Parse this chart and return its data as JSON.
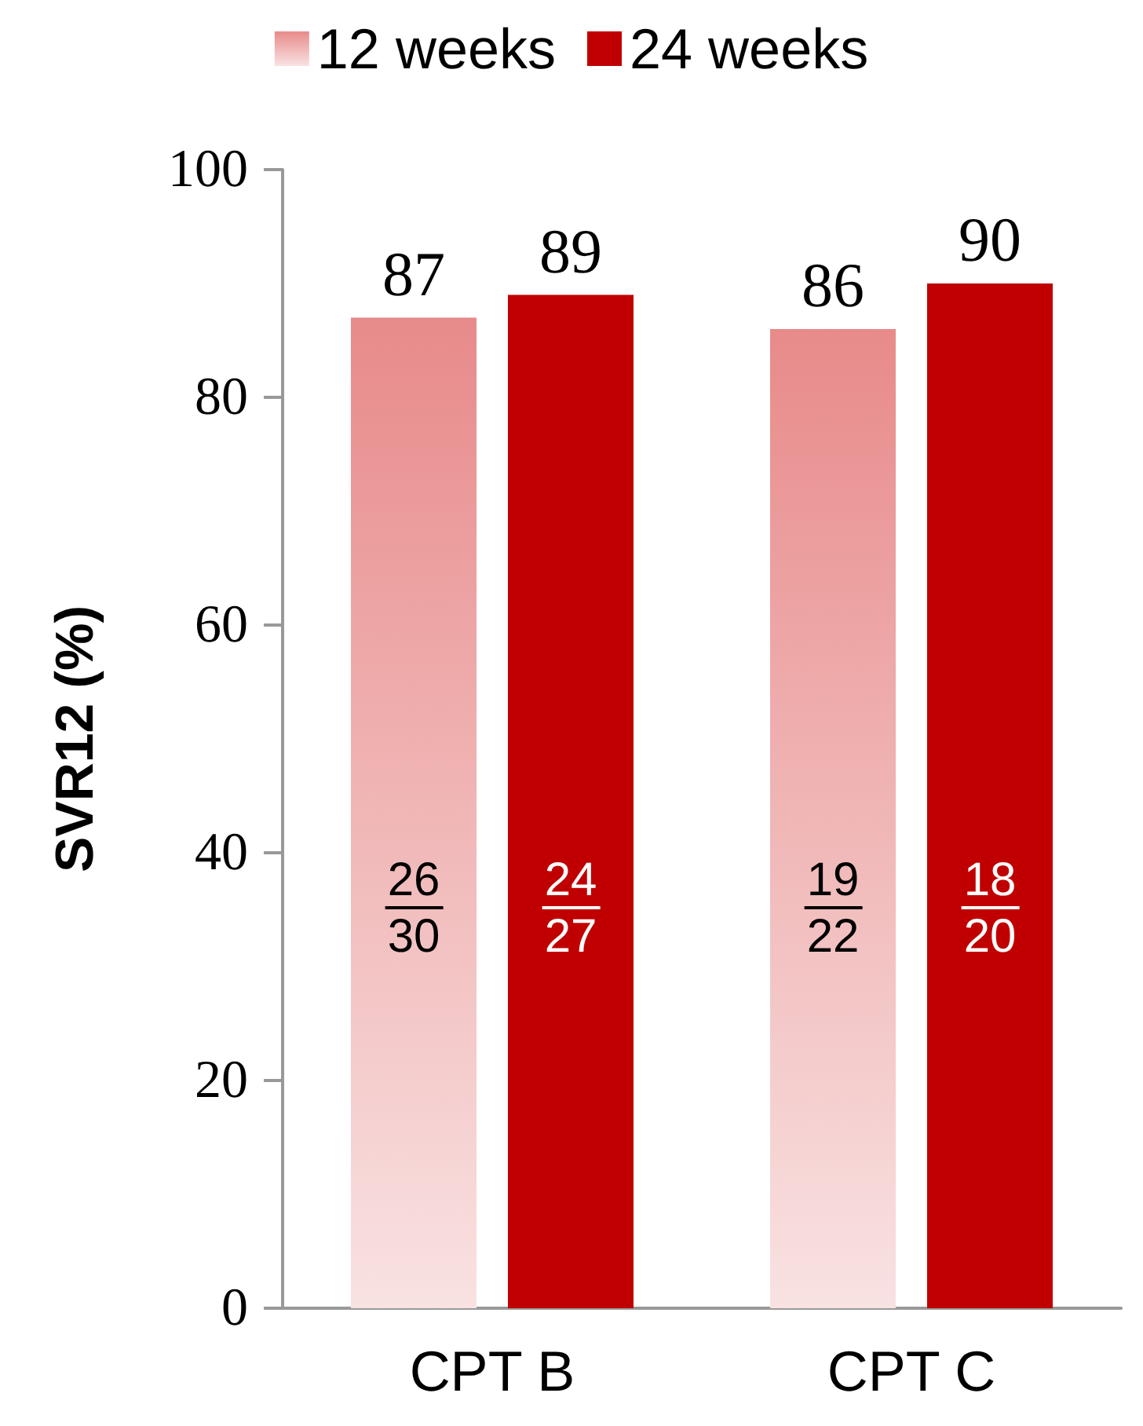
{
  "chart_data": {
    "type": "bar",
    "ylabel": "SVR12 (%)",
    "categories": [
      "CPT B",
      "CPT C"
    ],
    "series": [
      {
        "name": "12 weeks",
        "color": "#e88a8a",
        "values": [
          87,
          86
        ]
      },
      {
        "name": "24 weeks",
        "color": "#c00000",
        "values": [
          89,
          90
        ]
      }
    ],
    "ylim": [
      0,
      100
    ],
    "yticks": [
      0,
      20,
      40,
      60,
      80,
      100
    ],
    "data_labels": true,
    "legend": "top",
    "grid": false,
    "annotations": [
      "26",
      "30",
      "24",
      "27",
      "19",
      "22",
      "18",
      "20"
    ]
  }
}
